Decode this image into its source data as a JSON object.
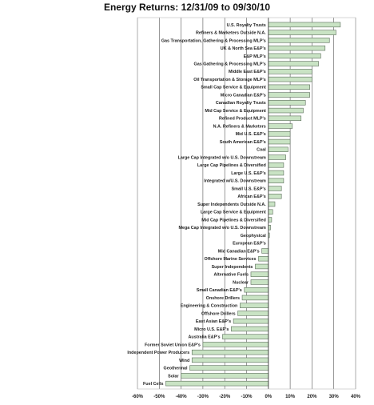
{
  "chart_data": {
    "type": "bar",
    "orientation": "horizontal",
    "title": "Energy Returns: 12/31/09 to 09/30/10",
    "xlim": [
      -0.6,
      0.4
    ],
    "x_ticks": [
      "-60%",
      "-50%",
      "-40%",
      "-30%",
      "-20%",
      "-10%",
      "0%",
      "10%",
      "20%",
      "30%",
      "40%"
    ],
    "grid": true,
    "bar_color": "#c9e3c4",
    "bar_edge_color": "#5b6d5a",
    "categories": [
      "U.S. Royalty Trusts",
      "Refiners & Marketers Outside N.A.",
      "Gas Transportation, Gathering & Processing MLP's",
      "UK & North Sea E&P's",
      "E&P MLP's",
      "Gas Gathering & Processing MLP's",
      "Middle East E&P's",
      "Oil Transportation & Storage MLP's",
      "Small Cap Service & Equipment",
      "Micro Canadian E&P's",
      "Canadian Royalty Trusts",
      "Mid Cap Service & Equipment",
      "Refined Product MLP's",
      "N.A. Refiners & Marketers",
      "Mid U.S. E&P's",
      "South American E&P's",
      "Coal",
      "Large Cap Integrated w/o U.S. Downstream",
      "Large Cap Pipelines & Diversified",
      "Large U.S. E&P's",
      "Integrated w/U.S. Downstream",
      "Small U.S. E&P's",
      "African E&P's",
      "Super Independents Outside N.A.",
      "Large Cap Service & Equipment",
      "Mid Cap Pipelines & Diversified",
      "Mega Cap Integrated w/o U.S. Downstream",
      "Geophysical",
      "European E&P's",
      "Mid Canadian E&P's",
      "Offshore Marine Services",
      "Super Independents",
      "Alternative Fuels",
      "Nuclear",
      "Small Canadian E&P's",
      "Onshore Drillers",
      "Engineering & Construction",
      "Offshore Drillers",
      "East Asian E&P's",
      "Micro U.S. E&P's",
      "Australia E&P's",
      "Former Soviet Union E&P's",
      "Independent Power Producers",
      "Wind",
      "Geothermal",
      "Solar",
      "Fuel Cells"
    ],
    "values": [
      0.33,
      0.31,
      0.28,
      0.26,
      0.24,
      0.23,
      0.2,
      0.2,
      0.19,
      0.19,
      0.17,
      0.16,
      0.15,
      0.11,
      0.1,
      0.1,
      0.09,
      0.08,
      0.07,
      0.07,
      0.07,
      0.06,
      0.06,
      0.03,
      0.02,
      0.015,
      0.01,
      0.005,
      0.0,
      -0.03,
      -0.045,
      -0.06,
      -0.08,
      -0.08,
      -0.11,
      -0.12,
      -0.13,
      -0.14,
      -0.16,
      -0.17,
      -0.21,
      -0.3,
      -0.35,
      -0.35,
      -0.36,
      -0.4,
      -0.47
    ]
  }
}
